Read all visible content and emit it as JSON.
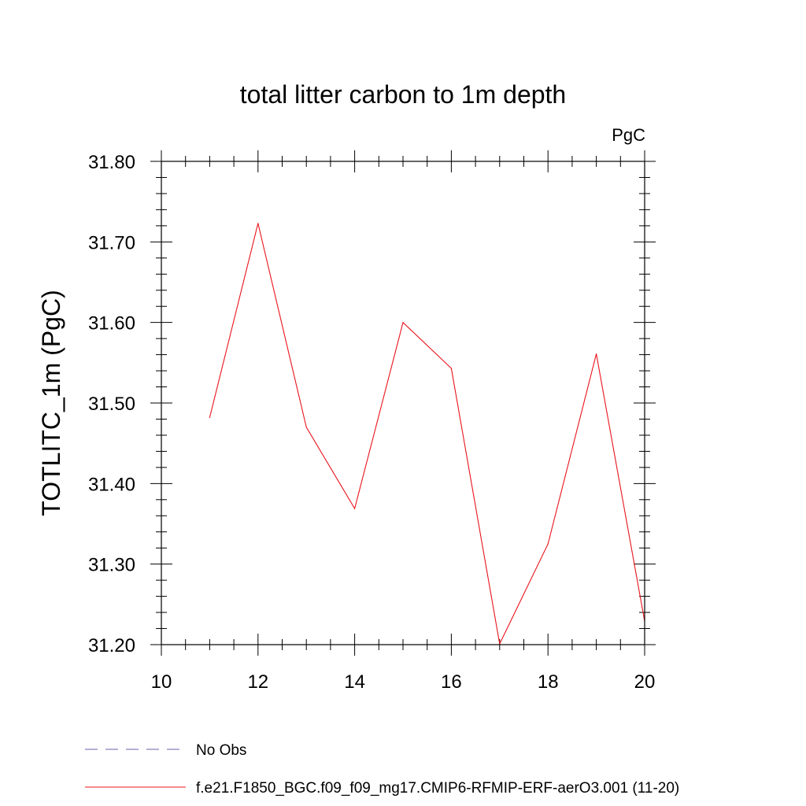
{
  "chart_data": {
    "type": "line",
    "title": "total litter carbon to 1m depth",
    "units_label": "PgC",
    "ylabel": "TOTLITC_1m  (PgC)",
    "xlabel": "",
    "xlim": [
      10,
      20
    ],
    "ylim": [
      31.2,
      31.8
    ],
    "x_ticks": [
      "10",
      "12",
      "14",
      "16",
      "18",
      "20"
    ],
    "y_ticks": [
      "31.20",
      "31.30",
      "31.40",
      "31.50",
      "31.60",
      "31.70",
      "31.80"
    ],
    "grid": false,
    "legend_position": "bottom",
    "series": [
      {
        "name": "f.e21.F1850_BGC.f09_f09_mg17.CMIP6-RFMIP-ERF-aerO3.001 (11-20)",
        "color": "#e8141c",
        "style": "solid",
        "x": [
          11,
          12,
          13,
          14,
          15,
          16,
          17,
          18,
          19,
          20
        ],
        "y": [
          31.482,
          31.723,
          31.47,
          31.369,
          31.6,
          31.543,
          31.201,
          31.325,
          31.561,
          31.229
        ]
      }
    ],
    "legend": [
      {
        "label": "No Obs",
        "color": "#6a5fa8",
        "style": "dashed"
      },
      {
        "label": "f.e21.F1850_BGC.f09_f09_mg17.CMIP6-RFMIP-ERF-aerO3.001 (11-20)",
        "color": "#e8141c",
        "style": "solid"
      }
    ]
  }
}
